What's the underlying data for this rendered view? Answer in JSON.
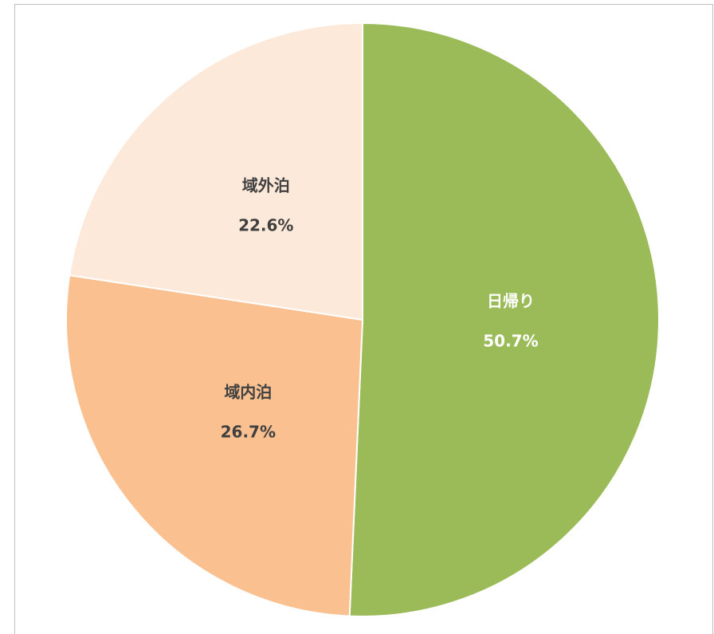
{
  "chart_data": {
    "type": "pie",
    "categories": [
      "日帰り",
      "域内泊",
      "域外泊"
    ],
    "values": [
      50.7,
      26.7,
      22.6
    ],
    "value_labels": [
      "50.7%",
      "26.7%",
      "22.6%"
    ],
    "colors": [
      "#9bbb59",
      "#fac090",
      "#fde9d9"
    ]
  }
}
